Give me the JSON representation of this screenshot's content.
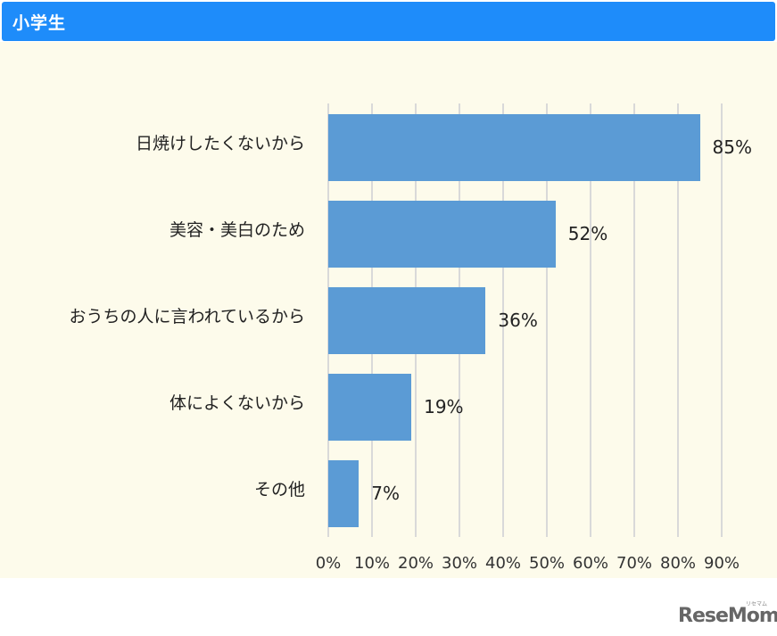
{
  "header": {
    "title": "小学生"
  },
  "chart_data": {
    "type": "bar",
    "orientation": "horizontal",
    "title": "小学生",
    "categories": [
      "日焼けしたくないから",
      "美容・美白のため",
      "おうちの人に言われているから",
      "体によくないから",
      "その他"
    ],
    "values": [
      85,
      52,
      36,
      19,
      7
    ],
    "value_labels": [
      "85%",
      "52%",
      "36%",
      "19%",
      "7%"
    ],
    "xlabel": "",
    "ylabel": "",
    "xlim": [
      0,
      90
    ],
    "x_ticks": [
      "0%",
      "10%",
      "20%",
      "30%",
      "40%",
      "50%",
      "60%",
      "70%",
      "80%",
      "90%"
    ],
    "grid": true,
    "legend": "none",
    "bar_color": "#5b9bd5"
  },
  "colors": {
    "header": "#1e8cfa",
    "background": "#fdfbeb",
    "bar": "#5b9bd5",
    "grid": "#d9d9d9"
  },
  "watermark": {
    "text": "ReseMom",
    "sub": "リセマム"
  }
}
